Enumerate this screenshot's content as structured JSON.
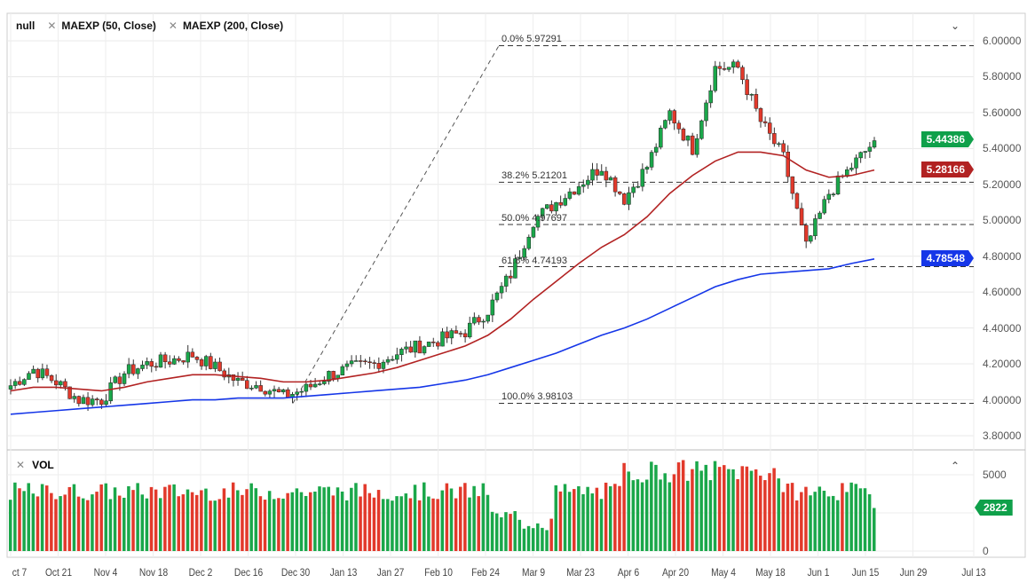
{
  "legend": {
    "main": "null",
    "ema50": "MAEXP (50, Close)",
    "ema200": "MAEXP (200, Close)",
    "collapse": "⌄"
  },
  "volume": {
    "label": "VOL",
    "collapse": "⌃",
    "axis": [
      "5000",
      "0"
    ],
    "last": "2822"
  },
  "y_axis": [
    "6.00000",
    "5.80000",
    "5.60000",
    "5.40000",
    "5.20000",
    "5.00000",
    "4.80000",
    "4.60000",
    "4.40000",
    "4.20000",
    "4.00000",
    "3.80000"
  ],
  "x_axis": [
    "ct 7",
    "Oct 21",
    "Nov 4",
    "Nov 18",
    "Dec 2",
    "Dec 16",
    "Dec 30",
    "Jan 13",
    "Jan 27",
    "Feb 10",
    "Feb 24",
    "Mar 9",
    "Mar 23",
    "Apr 6",
    "Apr 20",
    "May 4",
    "May 18",
    "Jun 1",
    "Jun 15",
    "Jun 29",
    "Jul 13"
  ],
  "tags": {
    "price": "5.44386",
    "ema50": "5.28166",
    "ema200": "4.78548"
  },
  "fib": [
    {
      "label": "0.0% 5.97291",
      "level": 5.97291
    },
    {
      "label": "38.2% 5.21201",
      "level": 5.21201
    },
    {
      "label": "50.0% 4.97697",
      "level": 4.97697
    },
    {
      "label": "61.8% 4.74193",
      "level": 4.74193
    },
    {
      "label": "100.0% 3.98103",
      "level": 3.98103
    }
  ],
  "colors": {
    "up": "#1aa74a",
    "down": "#e2392b",
    "ema50": "#b22222",
    "ema200": "#1536e8",
    "price_tag": "#0fa04a"
  },
  "chart_data": {
    "type": "candlestick",
    "ylim": [
      3.8,
      6.0
    ],
    "weekly_close": [
      4.08,
      4.17,
      4.1,
      4.0,
      4.0,
      4.15,
      4.2,
      4.22,
      4.25,
      4.18,
      4.1,
      4.08,
      4.02,
      4.06,
      4.14,
      4.18,
      4.2,
      4.26,
      4.3,
      4.34,
      4.38,
      4.5,
      4.7,
      5.0,
      5.1,
      5.2,
      5.3,
      5.12,
      5.3,
      5.6,
      5.4,
      5.85,
      5.85,
      5.55,
      5.35,
      4.85,
      5.15,
      5.3,
      5.44
    ],
    "ema50": [
      4.05,
      4.07,
      4.07,
      4.06,
      4.05,
      4.07,
      4.1,
      4.12,
      4.14,
      4.14,
      4.13,
      4.12,
      4.1,
      4.1,
      4.11,
      4.13,
      4.15,
      4.18,
      4.22,
      4.26,
      4.3,
      4.36,
      4.45,
      4.56,
      4.66,
      4.76,
      4.85,
      4.92,
      5.02,
      5.15,
      5.25,
      5.33,
      5.38,
      5.38,
      5.36,
      5.28,
      5.24,
      5.25,
      5.28
    ],
    "ema200": [
      3.92,
      3.93,
      3.94,
      3.95,
      3.96,
      3.97,
      3.98,
      3.99,
      4.0,
      4.0,
      4.01,
      4.01,
      4.01,
      4.02,
      4.03,
      4.04,
      4.05,
      4.06,
      4.07,
      4.09,
      4.11,
      4.14,
      4.18,
      4.22,
      4.26,
      4.31,
      4.36,
      4.4,
      4.45,
      4.51,
      4.57,
      4.63,
      4.67,
      4.7,
      4.71,
      4.72,
      4.73,
      4.76,
      4.785
    ]
  }
}
